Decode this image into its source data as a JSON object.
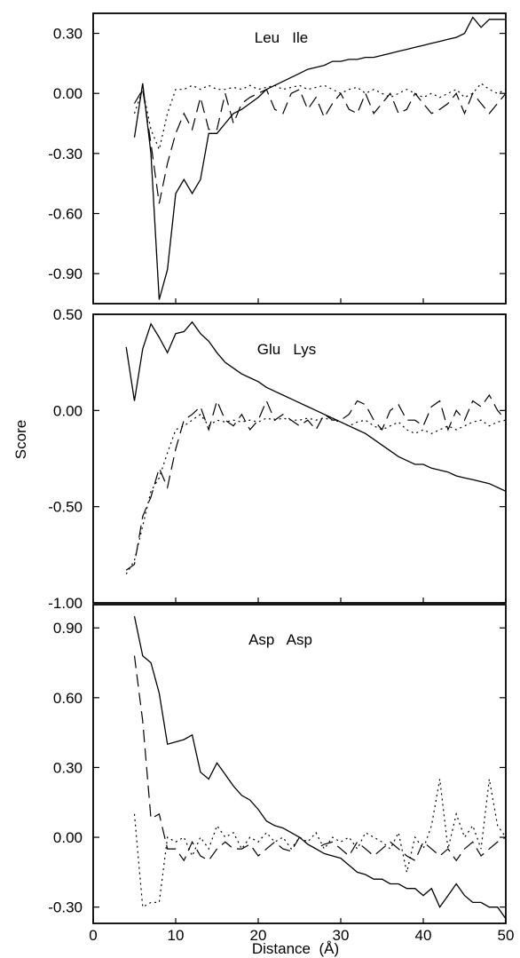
{
  "chart_data": [
    {
      "type": "line",
      "title": "Leu   Ile",
      "ylim": [
        -1.05,
        0.4
      ],
      "yticks": [
        0.3,
        0.0,
        -0.3,
        -0.6,
        -0.9
      ],
      "ytick_labels": [
        "0.30",
        "0.00",
        "-0.30",
        "-0.60",
        "-0.90"
      ],
      "series": [
        {
          "style": "solid",
          "x": [
            5,
            6,
            7,
            8,
            9,
            10,
            11,
            12,
            13,
            14,
            15,
            16,
            17,
            18,
            19,
            20,
            21,
            22,
            23,
            24,
            25,
            26,
            27,
            28,
            29,
            30,
            31,
            32,
            33,
            34,
            35,
            36,
            37,
            38,
            39,
            40,
            41,
            42,
            43,
            44,
            45,
            46,
            47,
            48,
            49,
            50
          ],
          "y": [
            -0.22,
            0.05,
            -0.3,
            -1.03,
            -0.88,
            -0.5,
            -0.43,
            -0.5,
            -0.43,
            -0.2,
            -0.2,
            -0.15,
            -0.1,
            -0.08,
            -0.05,
            -0.02,
            0.02,
            0.04,
            0.06,
            0.08,
            0.1,
            0.12,
            0.13,
            0.14,
            0.16,
            0.16,
            0.17,
            0.17,
            0.18,
            0.18,
            0.19,
            0.2,
            0.21,
            0.22,
            0.23,
            0.24,
            0.25,
            0.26,
            0.27,
            0.28,
            0.3,
            0.38,
            0.33,
            0.37,
            0.37,
            0.37
          ]
        },
        {
          "style": "dashed",
          "x": [
            5,
            6,
            7,
            8,
            9,
            10,
            11,
            12,
            13,
            14,
            15,
            16,
            17,
            18,
            19,
            20,
            21,
            22,
            23,
            24,
            25,
            26,
            27,
            28,
            29,
            30,
            31,
            32,
            33,
            34,
            35,
            36,
            37,
            38,
            39,
            40,
            41,
            42,
            43,
            44,
            45,
            46,
            47,
            48,
            49,
            50
          ],
          "y": [
            -0.05,
            0.02,
            -0.25,
            -0.55,
            -0.35,
            -0.2,
            -0.1,
            -0.18,
            -0.02,
            -0.18,
            -0.18,
            0.0,
            -0.15,
            -0.05,
            -0.02,
            0.0,
            0.02,
            -0.08,
            -0.1,
            0.0,
            0.02,
            -0.08,
            -0.02,
            -0.12,
            -0.05,
            0.0,
            -0.08,
            -0.1,
            0.0,
            -0.1,
            -0.05,
            0.0,
            -0.1,
            -0.08,
            0.0,
            -0.05,
            -0.1,
            -0.08,
            -0.05,
            0.0,
            -0.1,
            0.0,
            -0.05,
            -0.1,
            -0.05,
            0.0
          ]
        },
        {
          "style": "dotted",
          "x": [
            5,
            6,
            7,
            8,
            9,
            10,
            11,
            12,
            13,
            14,
            15,
            16,
            17,
            18,
            19,
            20,
            21,
            22,
            23,
            24,
            25,
            26,
            27,
            28,
            29,
            30,
            31,
            32,
            33,
            34,
            35,
            36,
            37,
            38,
            39,
            40,
            41,
            42,
            43,
            44,
            45,
            46,
            47,
            48,
            49,
            50
          ],
          "y": [
            -0.1,
            0.02,
            -0.18,
            -0.28,
            -0.1,
            0.02,
            0.02,
            0.04,
            0.02,
            0.04,
            0.02,
            0.02,
            0.03,
            0.02,
            0.04,
            0.02,
            0.03,
            0.04,
            0.02,
            0.03,
            0.04,
            0.02,
            0.03,
            0.04,
            0.02,
            0.0,
            0.02,
            0.03,
            0.0,
            0.02,
            0.0,
            -0.02,
            0.0,
            0.02,
            0.0,
            -0.02,
            0.0,
            -0.02,
            0.0,
            0.02,
            -0.02,
            0.0,
            0.05,
            0.02,
            0.0,
            0.02
          ]
        }
      ]
    },
    {
      "type": "line",
      "title": "Glu   Lys",
      "ylim": [
        -1.0,
        0.5
      ],
      "yticks": [
        0.5,
        0.0,
        -0.5,
        -1.0
      ],
      "ytick_labels": [
        "0.50",
        "0.00",
        "-0.50",
        "-1.00"
      ],
      "series": [
        {
          "style": "solid",
          "x": [
            4,
            5,
            6,
            7,
            8,
            9,
            10,
            11,
            12,
            13,
            14,
            15,
            16,
            17,
            18,
            19,
            20,
            21,
            22,
            23,
            24,
            25,
            26,
            27,
            28,
            29,
            30,
            31,
            32,
            33,
            34,
            35,
            36,
            37,
            38,
            39,
            40,
            41,
            42,
            43,
            44,
            45,
            46,
            47,
            48,
            49,
            50
          ],
          "y": [
            0.33,
            0.05,
            0.32,
            0.45,
            0.38,
            0.3,
            0.4,
            0.41,
            0.46,
            0.4,
            0.36,
            0.3,
            0.25,
            0.22,
            0.19,
            0.17,
            0.15,
            0.12,
            0.1,
            0.08,
            0.06,
            0.04,
            0.02,
            0.0,
            -0.02,
            -0.04,
            -0.06,
            -0.08,
            -0.1,
            -0.12,
            -0.15,
            -0.18,
            -0.21,
            -0.24,
            -0.26,
            -0.28,
            -0.28,
            -0.3,
            -0.31,
            -0.32,
            -0.34,
            -0.35,
            -0.36,
            -0.37,
            -0.38,
            -0.4,
            -0.42
          ]
        },
        {
          "style": "dashed",
          "x": [
            4,
            5,
            6,
            7,
            8,
            9,
            10,
            11,
            12,
            13,
            14,
            15,
            16,
            17,
            18,
            19,
            20,
            21,
            22,
            23,
            24,
            25,
            26,
            27,
            28,
            29,
            30,
            31,
            32,
            33,
            34,
            35,
            36,
            37,
            38,
            39,
            40,
            41,
            42,
            43,
            44,
            45,
            46,
            47,
            48,
            49,
            50
          ],
          "y": [
            -0.83,
            -0.8,
            -0.55,
            -0.45,
            -0.3,
            -0.4,
            -0.2,
            -0.05,
            -0.02,
            0.02,
            -0.1,
            0.05,
            -0.05,
            -0.08,
            -0.02,
            -0.1,
            -0.05,
            0.05,
            -0.05,
            -0.02,
            -0.05,
            -0.08,
            -0.05,
            -0.1,
            -0.02,
            -0.05,
            -0.05,
            -0.02,
            0.05,
            0.03,
            -0.05,
            -0.1,
            0.0,
            0.03,
            -0.05,
            -0.05,
            -0.08,
            0.02,
            0.05,
            -0.1,
            0.0,
            -0.05,
            0.05,
            0.02,
            0.08,
            0.0,
            -0.05
          ]
        },
        {
          "style": "dotted",
          "x": [
            4,
            5,
            6,
            7,
            8,
            9,
            10,
            11,
            12,
            13,
            14,
            15,
            16,
            17,
            18,
            19,
            20,
            21,
            22,
            23,
            24,
            25,
            26,
            27,
            28,
            29,
            30,
            31,
            32,
            33,
            34,
            35,
            36,
            37,
            38,
            39,
            40,
            41,
            42,
            43,
            44,
            45,
            46,
            47,
            48,
            49,
            50
          ],
          "y": [
            -0.85,
            -0.78,
            -0.6,
            -0.42,
            -0.35,
            -0.22,
            -0.1,
            -0.08,
            -0.05,
            -0.02,
            -0.08,
            -0.05,
            -0.06,
            -0.05,
            -0.06,
            -0.05,
            -0.06,
            -0.04,
            -0.05,
            -0.04,
            -0.05,
            -0.05,
            -0.04,
            -0.05,
            -0.04,
            -0.05,
            -0.06,
            -0.08,
            -0.06,
            -0.05,
            -0.08,
            -0.1,
            -0.08,
            -0.06,
            -0.1,
            -0.12,
            -0.1,
            -0.12,
            -0.1,
            -0.08,
            -0.1,
            -0.08,
            -0.06,
            -0.05,
            -0.08,
            -0.06,
            -0.05
          ]
        }
      ]
    },
    {
      "type": "line",
      "title": "Asp   Asp",
      "xlabel": "Distance  (Å)",
      "xlim": [
        0,
        50
      ],
      "xticks": [
        0,
        10,
        20,
        30,
        40,
        50
      ],
      "xtick_labels": [
        "0",
        "10",
        "20",
        "30",
        "40",
        "50"
      ],
      "ylim": [
        -0.37,
        1.0
      ],
      "yticks": [
        0.9,
        0.6,
        0.3,
        0.0,
        -0.3
      ],
      "ytick_labels": [
        "0.90",
        "0.60",
        "0.30",
        "0.00",
        "-0.30"
      ],
      "series": [
        {
          "style": "solid",
          "x": [
            5,
            6,
            7,
            8,
            9,
            10,
            11,
            12,
            13,
            14,
            15,
            16,
            17,
            18,
            19,
            20,
            21,
            22,
            23,
            24,
            25,
            26,
            27,
            28,
            29,
            30,
            31,
            32,
            33,
            34,
            35,
            36,
            37,
            38,
            39,
            40,
            41,
            42,
            43,
            44,
            45,
            46,
            47,
            48,
            49,
            50
          ],
          "y": [
            0.95,
            0.78,
            0.75,
            0.62,
            0.4,
            0.41,
            0.42,
            0.44,
            0.28,
            0.25,
            0.32,
            0.27,
            0.22,
            0.18,
            0.16,
            0.12,
            0.07,
            0.05,
            0.04,
            0.02,
            0.0,
            -0.03,
            -0.05,
            -0.07,
            -0.08,
            -0.09,
            -0.12,
            -0.15,
            -0.16,
            -0.18,
            -0.18,
            -0.2,
            -0.2,
            -0.22,
            -0.22,
            -0.25,
            -0.22,
            -0.3,
            -0.25,
            -0.2,
            -0.25,
            -0.28,
            -0.28,
            -0.3,
            -0.3,
            -0.35
          ]
        },
        {
          "style": "dashed",
          "x": [
            5,
            6,
            7,
            8,
            9,
            10,
            11,
            12,
            13,
            14,
            15,
            16,
            17,
            18,
            19,
            20,
            21,
            22,
            23,
            24,
            25,
            26,
            27,
            28,
            29,
            30,
            31,
            32,
            33,
            34,
            35,
            36,
            37,
            38,
            39,
            40,
            41,
            42,
            43,
            44,
            45,
            46,
            47,
            48,
            49,
            50
          ],
          "y": [
            0.78,
            0.5,
            0.08,
            0.1,
            -0.05,
            -0.05,
            -0.1,
            -0.02,
            -0.08,
            -0.1,
            -0.05,
            -0.02,
            -0.05,
            -0.05,
            -0.03,
            -0.08,
            -0.05,
            -0.02,
            -0.05,
            -0.06,
            0.0,
            -0.03,
            -0.05,
            -0.03,
            -0.02,
            -0.05,
            -0.08,
            -0.02,
            -0.05,
            -0.08,
            -0.05,
            -0.02,
            -0.05,
            -0.08,
            -0.1,
            -0.02,
            -0.05,
            -0.08,
            -0.05,
            -0.1,
            -0.05,
            -0.02,
            -0.08,
            -0.05,
            -0.02,
            0.0
          ]
        },
        {
          "style": "dotted",
          "x": [
            5,
            6,
            7,
            8,
            9,
            10,
            11,
            12,
            13,
            14,
            15,
            16,
            17,
            18,
            19,
            20,
            21,
            22,
            23,
            24,
            25,
            26,
            27,
            28,
            29,
            30,
            31,
            32,
            33,
            34,
            35,
            36,
            37,
            38,
            39,
            40,
            41,
            42,
            43,
            44,
            45,
            46,
            47,
            48,
            49,
            50
          ],
          "y": [
            0.1,
            -0.3,
            -0.28,
            -0.28,
            0.0,
            -0.02,
            0.0,
            -0.08,
            0.0,
            -0.05,
            0.05,
            0.0,
            0.02,
            -0.05,
            0.0,
            -0.02,
            0.02,
            -0.02,
            0.0,
            -0.05,
            0.0,
            -0.02,
            0.02,
            -0.05,
            0.0,
            -0.02,
            0.0,
            -0.05,
            0.02,
            0.0,
            -0.02,
            -0.05,
            0.02,
            -0.15,
            0.0,
            -0.05,
            0.05,
            0.25,
            -0.05,
            0.1,
            0.0,
            0.05,
            -0.05,
            0.25,
            0.05,
            0.0
          ]
        }
      ]
    }
  ],
  "shared": {
    "ylabel": "Score"
  }
}
